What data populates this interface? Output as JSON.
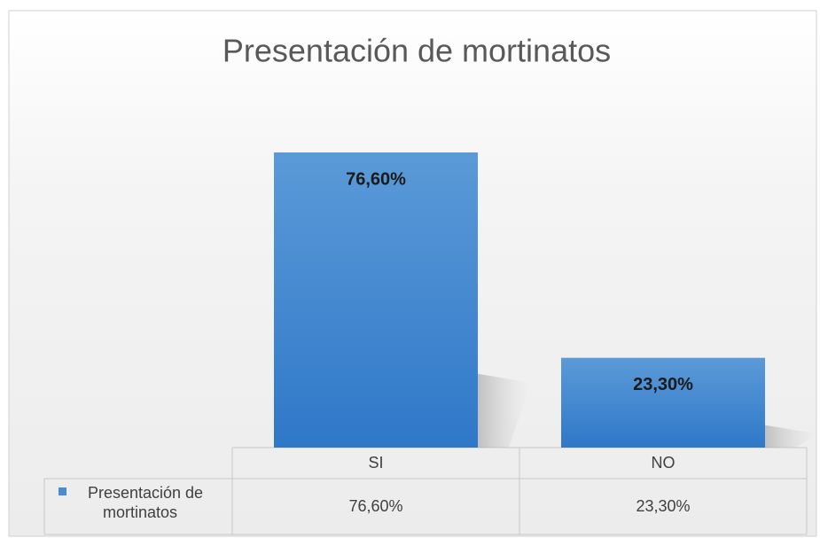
{
  "chart_data": {
    "type": "bar",
    "title": "Presentación de mortinatos",
    "categories": [
      "SI",
      "NO"
    ],
    "series": [
      {
        "name": "Presentación de mortinatos",
        "color": "#4a8bd2",
        "values": [
          76.6,
          23.3
        ],
        "value_labels": [
          "76,60%",
          "23,30%"
        ]
      }
    ],
    "data_table": true
  }
}
